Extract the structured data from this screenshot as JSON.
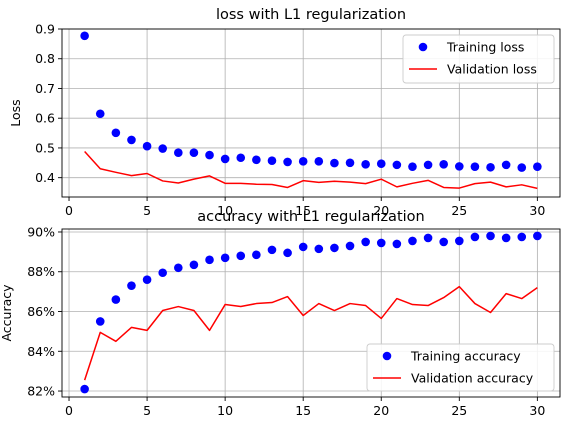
{
  "colors": {
    "training": "#0000ff",
    "validation": "#ff0000",
    "grid": "#b0b0b0",
    "axis": "#000000"
  },
  "chart_data": [
    {
      "type": "scatter+line",
      "title": "loss with L1 regularization",
      "xlabel": "",
      "ylabel": "Loss",
      "xlim": [
        -0.45,
        31.45
      ],
      "ylim": [
        0.335,
        0.9
      ],
      "xticks": [
        0,
        5,
        10,
        15,
        20,
        25,
        30
      ],
      "yticks": [
        0.4,
        0.5,
        0.6,
        0.7,
        0.8,
        0.9
      ],
      "ytick_labels": [
        "0.4",
        "0.5",
        "0.6",
        "0.7",
        "0.8",
        "0.9"
      ],
      "grid": true,
      "legend_position": "top-right",
      "x": [
        1,
        2,
        3,
        4,
        5,
        6,
        7,
        8,
        9,
        10,
        11,
        12,
        13,
        14,
        15,
        16,
        17,
        18,
        19,
        20,
        21,
        22,
        23,
        24,
        25,
        26,
        27,
        28,
        29,
        30
      ],
      "series": [
        {
          "name": "Training loss",
          "style": "marker",
          "values": [
            0.877,
            0.615,
            0.551,
            0.527,
            0.506,
            0.498,
            0.484,
            0.484,
            0.476,
            0.463,
            0.467,
            0.46,
            0.457,
            0.453,
            0.455,
            0.455,
            0.449,
            0.45,
            0.445,
            0.447,
            0.443,
            0.437,
            0.443,
            0.445,
            0.438,
            0.437,
            0.435,
            0.443,
            0.434,
            0.437
          ]
        },
        {
          "name": "Validation loss",
          "style": "line",
          "values": [
            0.488,
            0.43,
            0.418,
            0.407,
            0.414,
            0.389,
            0.382,
            0.395,
            0.406,
            0.381,
            0.381,
            0.378,
            0.377,
            0.367,
            0.39,
            0.384,
            0.388,
            0.385,
            0.38,
            0.395,
            0.369,
            0.381,
            0.391,
            0.367,
            0.365,
            0.38,
            0.385,
            0.369,
            0.376,
            0.364
          ]
        }
      ]
    },
    {
      "type": "scatter+line",
      "title": "accuracy with L1 regularization",
      "xlabel": "",
      "ylabel": "Accuracy",
      "xlim": [
        -0.45,
        31.45
      ],
      "ylim": [
        81.7,
        90.15
      ],
      "xticks": [
        0,
        5,
        10,
        15,
        20,
        25,
        30
      ],
      "yticks": [
        82,
        84,
        86,
        88,
        90
      ],
      "ytick_labels": [
        "82%",
        "84%",
        "86%",
        "88%",
        "90%"
      ],
      "grid": true,
      "legend_position": "bottom-right",
      "x": [
        1,
        2,
        3,
        4,
        5,
        6,
        7,
        8,
        9,
        10,
        11,
        12,
        13,
        14,
        15,
        16,
        17,
        18,
        19,
        20,
        21,
        22,
        23,
        24,
        25,
        26,
        27,
        28,
        29,
        30
      ],
      "series": [
        {
          "name": "Training accuracy",
          "style": "marker",
          "values": [
            82.1,
            85.5,
            86.6,
            87.3,
            87.6,
            87.95,
            88.2,
            88.35,
            88.6,
            88.7,
            88.8,
            88.85,
            89.1,
            88.95,
            89.25,
            89.15,
            89.2,
            89.3,
            89.5,
            89.45,
            89.4,
            89.55,
            89.7,
            89.5,
            89.55,
            89.75,
            89.8,
            89.7,
            89.75,
            89.8
          ]
        },
        {
          "name": "Validation accuracy",
          "style": "line",
          "values": [
            82.55,
            84.95,
            84.5,
            85.2,
            85.05,
            86.05,
            86.25,
            86.05,
            85.05,
            86.35,
            86.25,
            86.4,
            86.45,
            86.75,
            85.8,
            86.4,
            86.05,
            86.4,
            86.3,
            85.65,
            86.65,
            86.35,
            86.3,
            86.7,
            87.25,
            86.4,
            85.95,
            86.9,
            86.65,
            87.2
          ]
        }
      ]
    }
  ]
}
